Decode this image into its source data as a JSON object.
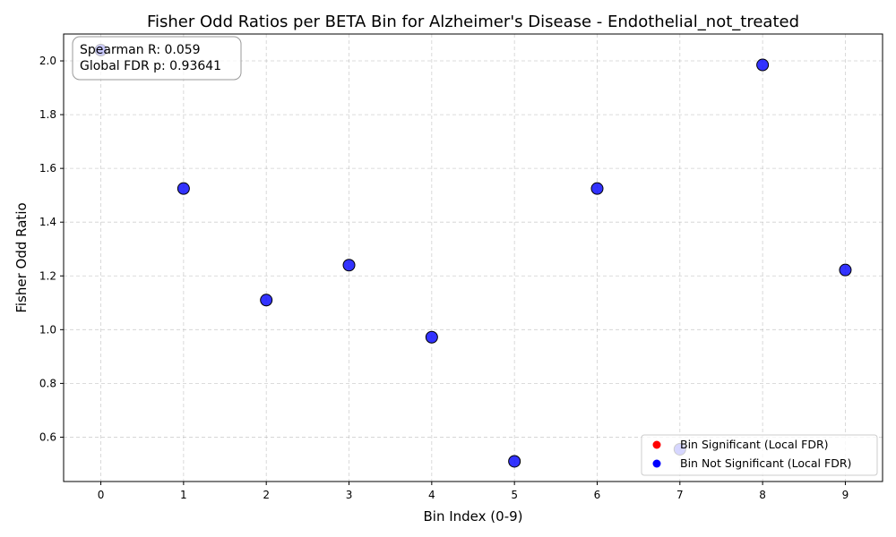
{
  "chart_data": {
    "type": "scatter",
    "title": "Fisher Odd Ratios per BETA Bin for Alzheimer's Disease - Endothelial_not_treated",
    "xlabel": "Bin Index (0-9)",
    "ylabel": "Fisher Odd Ratio",
    "xlim": [
      -0.45,
      9.45
    ],
    "ylim": [
      0.435,
      2.1
    ],
    "x_ticks": [
      0,
      1,
      2,
      3,
      4,
      5,
      6,
      7,
      8,
      9
    ],
    "y_ticks": [
      0.6,
      0.8,
      1.0,
      1.2,
      1.4,
      1.6,
      1.8,
      2.0
    ],
    "y_tick_labels": [
      "0.6",
      "0.8",
      "1.0",
      "1.2",
      "1.4",
      "1.6",
      "1.8",
      "2.0"
    ],
    "grid": true,
    "legend_position": "lower-right",
    "series": [
      {
        "name": "Bin Not Significant (Local FDR)",
        "color": "#0000ff",
        "x": [
          0,
          1,
          2,
          3,
          4,
          5,
          6,
          7,
          8,
          9
        ],
        "y": [
          2.04,
          1.525,
          1.11,
          1.24,
          0.972,
          0.51,
          1.525,
          0.555,
          1.985,
          1.222
        ]
      }
    ],
    "legend": [
      {
        "label": "Bin Significant (Local FDR)",
        "color": "#ff0000"
      },
      {
        "label": "Bin Not Significant (Local FDR)",
        "color": "#0000ff"
      }
    ],
    "annotation": {
      "line1": "Spearman R: 0.059",
      "line2": "Global FDR p: 0.93641"
    }
  }
}
